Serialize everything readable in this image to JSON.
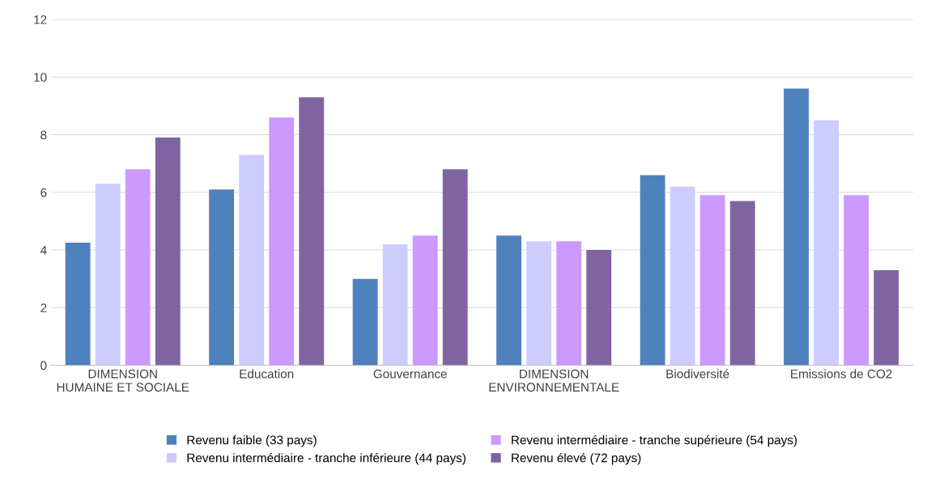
{
  "chart_data": {
    "type": "bar",
    "categories": [
      "DIMENSION\nHUMAINE ET SOCIALE",
      "Education",
      "Gouvernance",
      "DIMENSION\nENVIRONNEMENTALE",
      "Biodiversité",
      "Emissions de CO2"
    ],
    "series": [
      {
        "name": "Revenu faible (33 pays)",
        "color": "#4f81bd",
        "values": [
          4.25,
          6.1,
          3.0,
          4.5,
          6.6,
          9.6
        ]
      },
      {
        "name": "Revenu intermédiaire - tranche inférieure (44 pays)",
        "color": "#ccccff",
        "values": [
          6.3,
          7.3,
          4.2,
          4.3,
          6.2,
          8.5
        ]
      },
      {
        "name": "Revenu intermédiaire - tranche supérieure (54 pays)",
        "color": "#cc99ff",
        "values": [
          6.8,
          8.6,
          4.5,
          4.3,
          5.9,
          5.9
        ]
      },
      {
        "name": "Revenu élevé (72 pays)",
        "color": "#8064a2",
        "values": [
          7.9,
          9.3,
          6.8,
          4.0,
          5.7,
          3.3
        ]
      }
    ],
    "ylim": [
      0,
      12
    ],
    "yticks": [
      0,
      2,
      4,
      6,
      8,
      10,
      12
    ],
    "grid": "y",
    "legend": "bottom"
  }
}
